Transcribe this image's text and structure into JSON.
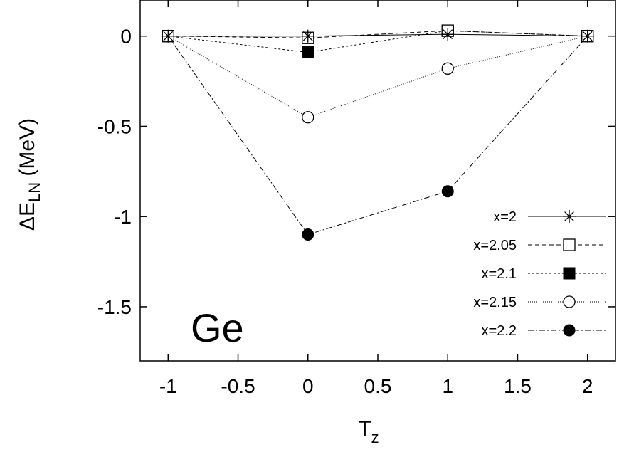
{
  "chart_data": {
    "type": "line",
    "title": "",
    "annotation": "Ge",
    "xlabel": {
      "main": "T",
      "sub": "z"
    },
    "ylabel": {
      "prefix": "ΔE",
      "sub": "LN",
      "suffix": " (MeV)"
    },
    "xlim": [
      -1.2,
      2.2
    ],
    "ylim": [
      -1.8,
      0.2
    ],
    "x_ticks": [
      -1,
      -0.5,
      0,
      0.5,
      1,
      1.5,
      2
    ],
    "x_tick_labels": [
      "-1",
      "-0.5",
      "0",
      "0.5",
      "1",
      "1.5",
      "2"
    ],
    "y_ticks": [
      0,
      -0.5,
      -1,
      -1.5
    ],
    "y_tick_labels": [
      "0",
      "-0.5",
      "-1",
      "-1.5"
    ],
    "grid": false,
    "legend_position": "bottom-right",
    "series": [
      {
        "name": "x=2",
        "marker": "asterisk",
        "dash": "solid",
        "x": [
          -1,
          0,
          1,
          2
        ],
        "y": [
          0,
          0,
          0.01,
          0
        ]
      },
      {
        "name": "x=2.05",
        "marker": "open-square",
        "dash": "dashed",
        "x": [
          -1,
          0,
          1,
          2
        ],
        "y": [
          0,
          -0.01,
          0.03,
          0
        ]
      },
      {
        "name": "x=2.1",
        "marker": "filled-square",
        "dash": "short-dashed",
        "x": [
          -1,
          0,
          1,
          2
        ],
        "y": [
          0,
          -0.09,
          0.03,
          0
        ]
      },
      {
        "name": "x=2.15",
        "marker": "open-circle",
        "dash": "dotted",
        "x": [
          -1,
          0,
          1,
          2
        ],
        "y": [
          0,
          -0.45,
          -0.18,
          0
        ]
      },
      {
        "name": "x=2.2",
        "marker": "filled-circle",
        "dash": "dash-dot",
        "x": [
          -1,
          0,
          1,
          2
        ],
        "y": [
          0,
          -1.1,
          -0.86,
          0
        ]
      }
    ]
  }
}
